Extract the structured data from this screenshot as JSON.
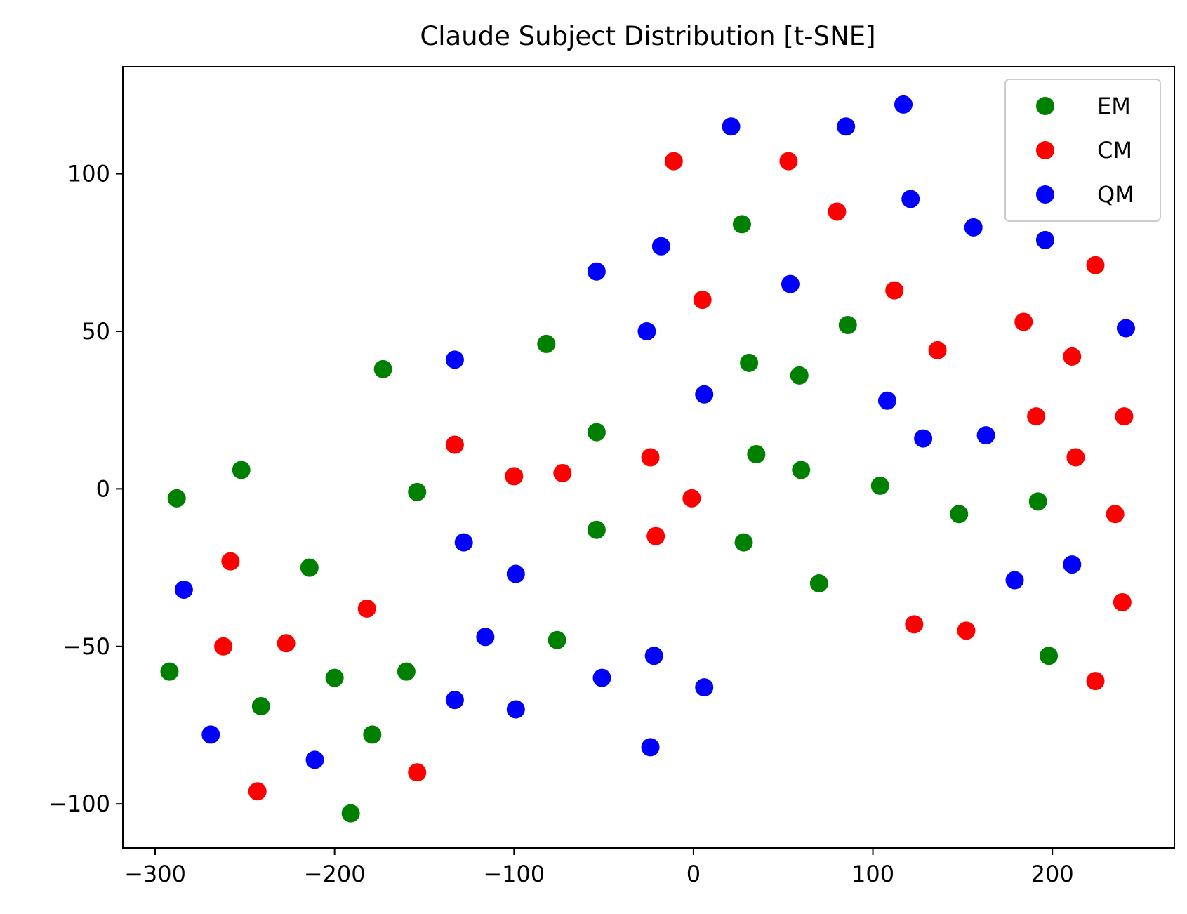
{
  "chart_data": {
    "type": "scatter",
    "title": "Claude Subject Distribution [t-SNE]",
    "xlabel": "",
    "ylabel": "",
    "xlim": [
      -318,
      268
    ],
    "ylim": [
      -114,
      134
    ],
    "x_ticks": [
      -300,
      -200,
      -100,
      0,
      100,
      200
    ],
    "x_tick_labels": [
      "−300",
      "−200",
      "−100",
      "0",
      "100",
      "200"
    ],
    "y_ticks": [
      -100,
      -50,
      0,
      50,
      100
    ],
    "y_tick_labels": [
      "−100",
      "−50",
      "0",
      "50",
      "100"
    ],
    "grid": false,
    "legend_position": "top-right",
    "series": [
      {
        "name": "EM",
        "color": "#008000",
        "points": [
          [
            -288,
            -3
          ],
          [
            -252,
            6
          ],
          [
            -214,
            -25
          ],
          [
            -292,
            -58
          ],
          [
            -241,
            -69
          ],
          [
            -200,
            -60
          ],
          [
            -191,
            -103
          ],
          [
            -179,
            -78
          ],
          [
            -160,
            -58
          ],
          [
            -154,
            -1
          ],
          [
            -173,
            38
          ],
          [
            -82,
            46
          ],
          [
            -54,
            18
          ],
          [
            -54,
            -13
          ],
          [
            -76,
            -48
          ],
          [
            27,
            84
          ],
          [
            31,
            40
          ],
          [
            35,
            11
          ],
          [
            28,
            -17
          ],
          [
            59,
            36
          ],
          [
            60,
            6
          ],
          [
            70,
            -30
          ],
          [
            86,
            52
          ],
          [
            104,
            1
          ],
          [
            148,
            -8
          ],
          [
            192,
            -4
          ],
          [
            198,
            -53
          ]
        ]
      },
      {
        "name": "CM",
        "color": "#ff0000",
        "points": [
          [
            -258,
            -23
          ],
          [
            -262,
            -50
          ],
          [
            -227,
            -49
          ],
          [
            -182,
            -38
          ],
          [
            -243,
            -96
          ],
          [
            -154,
            -90
          ],
          [
            -133,
            14
          ],
          [
            -100,
            4
          ],
          [
            -73,
            5
          ],
          [
            -24,
            10
          ],
          [
            -21,
            -15
          ],
          [
            -1,
            -3
          ],
          [
            5,
            60
          ],
          [
            -11,
            104
          ],
          [
            53,
            104
          ],
          [
            80,
            88
          ],
          [
            112,
            63
          ],
          [
            136,
            44
          ],
          [
            123,
            -43
          ],
          [
            152,
            -45
          ],
          [
            184,
            53
          ],
          [
            191,
            23
          ],
          [
            211,
            42
          ],
          [
            213,
            10
          ],
          [
            224,
            71
          ],
          [
            235,
            -8
          ],
          [
            240,
            23
          ],
          [
            239,
            -36
          ],
          [
            224,
            -61
          ]
        ]
      },
      {
        "name": "QM",
        "color": "#0000ff",
        "points": [
          [
            -284,
            -32
          ],
          [
            -269,
            -78
          ],
          [
            -211,
            -86
          ],
          [
            -133,
            41
          ],
          [
            -128,
            -17
          ],
          [
            -116,
            -47
          ],
          [
            -133,
            -67
          ],
          [
            -99,
            -70
          ],
          [
            -99,
            -27
          ],
          [
            -54,
            69
          ],
          [
            -51,
            -60
          ],
          [
            -26,
            50
          ],
          [
            -18,
            77
          ],
          [
            -22,
            -53
          ],
          [
            -24,
            -82
          ],
          [
            6,
            30
          ],
          [
            6,
            -63
          ],
          [
            21,
            115
          ],
          [
            54,
            65
          ],
          [
            85,
            115
          ],
          [
            117,
            122
          ],
          [
            108,
            28
          ],
          [
            121,
            92
          ],
          [
            128,
            16
          ],
          [
            156,
            83
          ],
          [
            163,
            17
          ],
          [
            179,
            -29
          ],
          [
            196,
            79
          ],
          [
            211,
            -24
          ],
          [
            241,
            51
          ]
        ]
      }
    ]
  }
}
